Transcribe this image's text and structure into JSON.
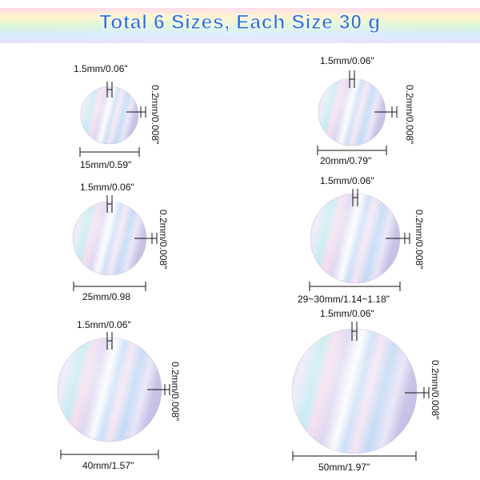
{
  "title": "Total 6 Sizes, Each Size 30 g",
  "items": [
    {
      "diameter_label": "15mm/0.59\"",
      "hole_label": "1.5mm/0.06\"",
      "thickness_label": "0.2mm/0.008\""
    },
    {
      "diameter_label": "20mm/0.79\"",
      "hole_label": "1.5mm/0.06\"",
      "thickness_label": "0.2mm/0.008\""
    },
    {
      "diameter_label": "25mm/0.98",
      "hole_label": "1.5mm/0.06\"",
      "thickness_label": "0.2mm/0.008\""
    },
    {
      "diameter_label": "29~30mm/1.14~1.18\"",
      "hole_label": "1.5mm/0.06\"",
      "thickness_label": "0.2mm/0.008\""
    },
    {
      "diameter_label": "40mm/1.57\"",
      "hole_label": "1.5mm/0.06\"",
      "thickness_label": "0.2mm/0.008\""
    },
    {
      "diameter_label": "50mm/1.97\"",
      "hole_label": "1.5mm/0.06\"",
      "thickness_label": "0.2mm/0.008\""
    }
  ],
  "colors": {
    "title": "#2f6fd6",
    "banner": [
      "#ffd6e8",
      "#fff3c4",
      "#d6f5d6",
      "#d4ecff",
      "#e6d9ff"
    ],
    "disc_base": "#d8d3ec"
  }
}
